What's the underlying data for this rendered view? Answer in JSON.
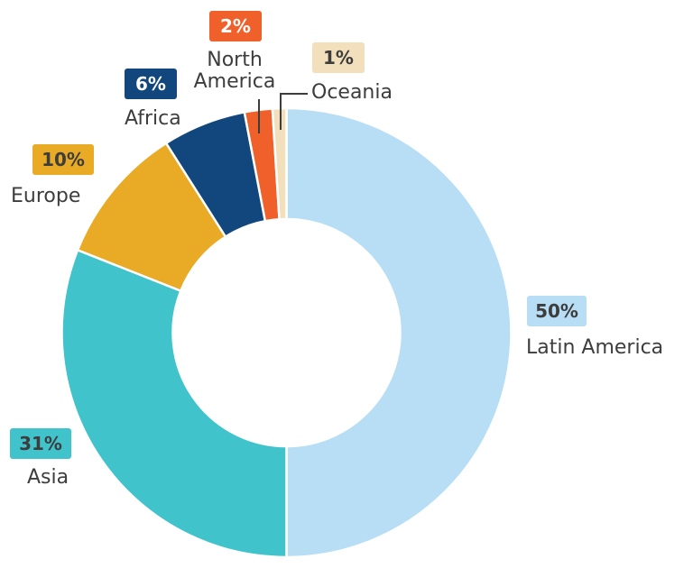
{
  "chart_data": {
    "type": "pie",
    "subtype": "donut",
    "title": "",
    "categories": [
      "Latin America",
      "Asia",
      "Europe",
      "Africa",
      "North America",
      "Oceania"
    ],
    "values": [
      50,
      31,
      10,
      6,
      2,
      1
    ],
    "unit": "%",
    "colors": [
      "#b7def5",
      "#41c3cc",
      "#e9aa25",
      "#12477d",
      "#f0602a",
      "#f2dfbb"
    ],
    "start_angle_deg": 0,
    "direction": "clockwise",
    "legend": "none (direct labels)"
  },
  "labels": {
    "latin_america": {
      "pct": "50%",
      "name": "Latin America"
    },
    "asia": {
      "pct": "31%",
      "name": "Asia"
    },
    "europe": {
      "pct": "10%",
      "name": "Europe"
    },
    "africa": {
      "pct": "6%",
      "name": "Africa"
    },
    "north_america": {
      "pct": "2%",
      "name_line1": "North",
      "name_line2": "America"
    },
    "oceania": {
      "pct": "1%",
      "name": "Oceania"
    }
  }
}
